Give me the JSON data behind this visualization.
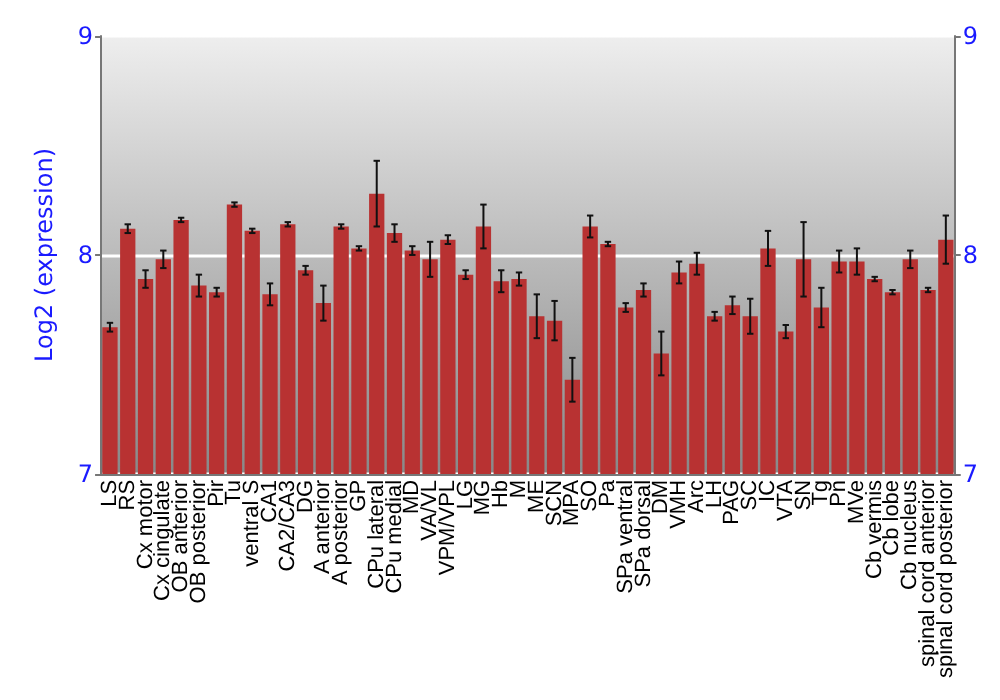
{
  "chart_data": {
    "type": "bar",
    "ylabel": "Log2 (expression)",
    "categories": [
      "LS",
      "RS",
      "Cx motor",
      "Cx cingulate",
      "OB anterior",
      "OB posterior",
      "Pir",
      "Tu",
      "ventral S",
      "CA1",
      "CA2/CA3",
      "DG",
      "A anterior",
      "A posterior",
      "GP",
      "CPu lateral",
      "CPu medial",
      "MD",
      "VA/VL",
      "VPM/VPL",
      "LG",
      "MG",
      "Hb",
      "M",
      "ME",
      "SCN",
      "MPA",
      "SO",
      "Pa",
      "SPa ventral",
      "SPa dorsal",
      "DM",
      "VMH",
      "Arc",
      "LH",
      "PAG",
      "SC",
      "IC",
      "VTA",
      "SN",
      "Tg",
      "Pn",
      "MVe",
      "Cb vermis",
      "Cb lobe",
      "Cb nucleus",
      "spinal cord anterior",
      "spinal cord posterior"
    ],
    "values": [
      7.67,
      8.12,
      7.89,
      7.98,
      8.16,
      7.86,
      7.83,
      8.23,
      8.11,
      7.82,
      8.14,
      7.93,
      7.78,
      8.13,
      8.03,
      8.28,
      8.1,
      8.02,
      7.98,
      8.07,
      7.91,
      8.13,
      7.88,
      7.89,
      7.72,
      7.7,
      7.43,
      8.13,
      8.05,
      7.76,
      7.84,
      7.55,
      7.92,
      7.96,
      7.72,
      7.77,
      7.72,
      8.03,
      7.65,
      7.98,
      7.76,
      7.97,
      7.97,
      7.89,
      7.83,
      7.98,
      7.84,
      8.07
    ],
    "errors": [
      0.02,
      0.02,
      0.04,
      0.04,
      0.01,
      0.05,
      0.02,
      0.01,
      0.01,
      0.05,
      0.01,
      0.02,
      0.08,
      0.01,
      0.01,
      0.15,
      0.04,
      0.02,
      0.08,
      0.02,
      0.02,
      0.1,
      0.05,
      0.03,
      0.1,
      0.09,
      0.1,
      0.05,
      0.01,
      0.02,
      0.03,
      0.1,
      0.05,
      0.05,
      0.02,
      0.04,
      0.08,
      0.08,
      0.03,
      0.17,
      0.09,
      0.05,
      0.06,
      0.01,
      0.01,
      0.04,
      0.01,
      0.11
    ],
    "color": "#b83232",
    "ylim": [
      7,
      9
    ],
    "yticks": [
      7,
      8,
      9
    ],
    "y2lim": [
      7,
      9
    ],
    "y2ticks": [
      7,
      8,
      9
    ],
    "grid": "y"
  }
}
